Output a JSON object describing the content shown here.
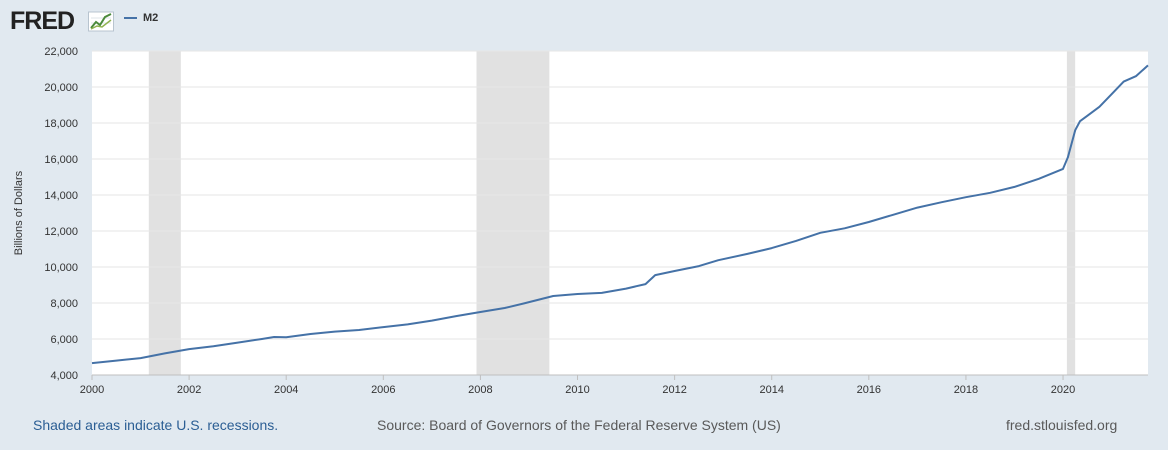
{
  "header": {
    "logo_text": "FRED",
    "logo_icon": "line-graph-icon"
  },
  "colors": {
    "series": "#4572a7",
    "recession": "#e1e1e1",
    "background": "#e1e9f0",
    "plot": "#ffffff"
  },
  "chart_data": {
    "type": "line",
    "xlabel": "",
    "ylabel": "Billions of Dollars",
    "xlim": [
      2000.0,
      2021.75
    ],
    "ylim": [
      4000,
      22000
    ],
    "x_ticks": [
      "2000",
      "2002",
      "2004",
      "2006",
      "2008",
      "2010",
      "2012",
      "2014",
      "2016",
      "2018",
      "2020"
    ],
    "x_tick_values": [
      2000,
      2002,
      2004,
      2006,
      2008,
      2010,
      2012,
      2014,
      2016,
      2018,
      2020
    ],
    "y_ticks": [
      "4,000",
      "6,000",
      "8,000",
      "10,000",
      "12,000",
      "14,000",
      "16,000",
      "18,000",
      "20,000",
      "22,000"
    ],
    "y_tick_values": [
      4000,
      6000,
      8000,
      10000,
      12000,
      14000,
      16000,
      18000,
      20000,
      22000
    ],
    "grid": "horizontal",
    "legend": "top-left",
    "recessions": [
      [
        2001.17,
        2001.83
      ],
      [
        2007.92,
        2009.42
      ],
      [
        2020.08,
        2020.25
      ]
    ],
    "series": [
      {
        "name": "M2",
        "x": [
          2000.0,
          2000.5,
          2001.0,
          2001.5,
          2002.0,
          2002.5,
          2003.0,
          2003.5,
          2003.75,
          2004.0,
          2004.5,
          2005.0,
          2005.5,
          2006.0,
          2006.5,
          2007.0,
          2007.5,
          2008.0,
          2008.5,
          2008.9,
          2009.5,
          2010.0,
          2010.5,
          2011.0,
          2011.4,
          2011.6,
          2012.0,
          2012.5,
          2012.9,
          2013.5,
          2014.0,
          2014.5,
          2015.0,
          2015.5,
          2016.0,
          2016.5,
          2017.0,
          2017.5,
          2018.0,
          2018.5,
          2019.0,
          2019.5,
          2020.0,
          2020.1,
          2020.25,
          2020.35,
          2020.5,
          2020.75,
          2021.0,
          2021.25,
          2021.5,
          2021.75
        ],
        "values": [
          4660,
          4800,
          4940,
          5200,
          5440,
          5600,
          5800,
          6000,
          6110,
          6100,
          6280,
          6410,
          6500,
          6660,
          6810,
          7020,
          7270,
          7500,
          7720,
          7980,
          8390,
          8500,
          8560,
          8800,
          9050,
          9550,
          9780,
          10050,
          10380,
          10730,
          11050,
          11450,
          11900,
          12150,
          12500,
          12900,
          13300,
          13600,
          13880,
          14120,
          14450,
          14900,
          15450,
          16100,
          17600,
          18100,
          18400,
          18900,
          19600,
          20300,
          20600,
          21200
        ]
      }
    ]
  },
  "footer": {
    "recession_note": "Shaded areas indicate U.S. recessions.",
    "source": "Source: Board of Governors of the Federal Reserve System (US)",
    "site": "fred.stlouisfed.org"
  }
}
